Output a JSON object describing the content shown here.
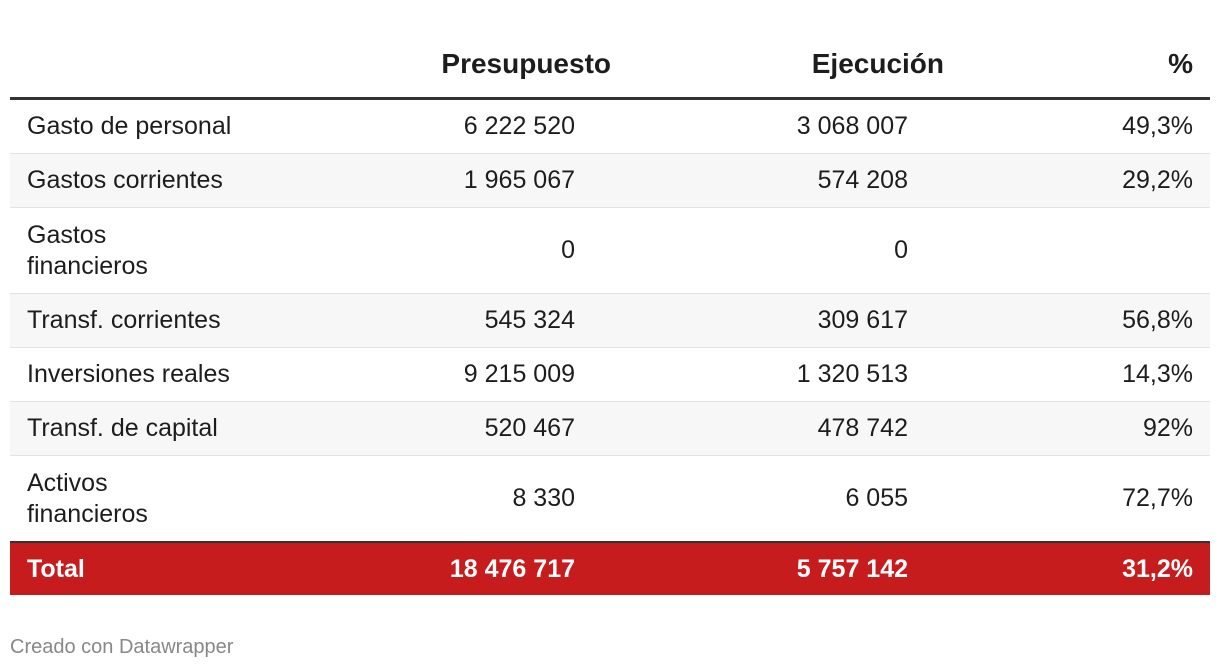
{
  "chart_data": {
    "type": "table",
    "columns": [
      "",
      "Presupuesto",
      "Ejecución",
      "%"
    ],
    "rows": [
      [
        "Gasto de personal",
        "6 222 520",
        "3 068 007",
        "49,3%"
      ],
      [
        "Gastos corrientes",
        "1 965 067",
        "574 208",
        "29,2%"
      ],
      [
        "Gastos financieros",
        "0",
        "0",
        ""
      ],
      [
        "Transf. corrientes",
        "545 324",
        "309 617",
        "56,8%"
      ],
      [
        "Inversiones reales",
        "9 215 009",
        "1 320 513",
        "14,3%"
      ],
      [
        "Transf. de capital",
        "520 467",
        "478 742",
        "92%"
      ],
      [
        "Activos financieros",
        "8 330",
        "6 055",
        "72,7%"
      ]
    ],
    "total": [
      "Total",
      "18 476 717",
      "5 757 142",
      "31,2%"
    ],
    "total_color": "#c71c1d"
  },
  "footer": "Creado con Datawrapper"
}
